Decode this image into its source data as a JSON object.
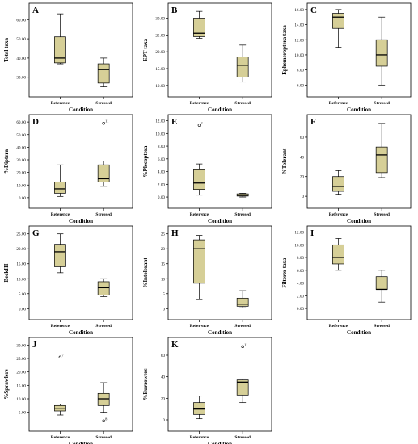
{
  "figure": {
    "categories": [
      "Reference",
      "Stressed"
    ],
    "xlabel": "Condition",
    "box_fill": "#d6cf97",
    "box_stroke": "#000000",
    "panel_border": "#000000"
  },
  "chart_data": [
    {
      "type": "box",
      "panel": "A",
      "ylabel": "Total taxa",
      "yticks": [
        "30.00",
        "40.00",
        "50.00",
        "60.00"
      ],
      "ylim": [
        24,
        66
      ],
      "boxes": [
        {
          "min": 37,
          "q1": 37.5,
          "median": 40,
          "q3": 51,
          "max": 63
        },
        {
          "min": 25,
          "q1": 27,
          "median": 34,
          "q3": 37,
          "max": 40
        }
      ],
      "outliers": []
    },
    {
      "type": "box",
      "panel": "B",
      "ylabel": "EPT taxa",
      "yticks": [
        "10.00",
        "15.00",
        "20.00",
        "25.00",
        "30.00"
      ],
      "ylim": [
        9,
        33
      ],
      "boxes": [
        {
          "min": 24,
          "q1": 24.5,
          "median": 25.5,
          "q3": 30,
          "max": 32
        },
        {
          "min": 11,
          "q1": 12.5,
          "median": 16,
          "q3": 18.5,
          "max": 22
        }
      ],
      "outliers": []
    },
    {
      "type": "box",
      "panel": "C",
      "ylabel": "Ephemeroptera taxa",
      "yticks": [
        "6.00",
        "8.00",
        "10.00",
        "12.00",
        "14.00",
        "16.00"
      ],
      "ylim": [
        5.5,
        16.2
      ],
      "boxes": [
        {
          "min": 11,
          "q1": 13.5,
          "median": 15,
          "q3": 15.5,
          "max": 16
        },
        {
          "min": 6,
          "q1": 8.5,
          "median": 10,
          "q3": 12,
          "max": 15
        }
      ],
      "outliers": []
    },
    {
      "type": "box",
      "panel": "D",
      "ylabel": "%Diptera",
      "yticks": [
        "0.00",
        "10.00",
        "20.00",
        "30.00",
        "40.00",
        "50.00",
        "60.00"
      ],
      "ylim": [
        -2,
        62
      ],
      "boxes": [
        {
          "min": 1,
          "q1": 3.5,
          "median": 7,
          "q3": 12.5,
          "max": 26
        },
        {
          "min": 9,
          "q1": 12.5,
          "median": 15,
          "q3": 26,
          "max": 29
        }
      ],
      "outliers": [
        {
          "group": 1,
          "value": 59,
          "label": "11"
        }
      ]
    },
    {
      "type": "box",
      "panel": "E",
      "ylabel": "%Plecoptera",
      "yticks": [
        "0.00",
        "2.00",
        "4.00",
        "6.00",
        "8.00",
        "10.00",
        "12.00"
      ],
      "ylim": [
        -0.5,
        12.2
      ],
      "boxes": [
        {
          "min": 0.3,
          "q1": 1.2,
          "median": 2.2,
          "q3": 4.4,
          "max": 5.2
        },
        {
          "min": 0,
          "q1": 0.15,
          "median": 0.3,
          "q3": 0.5,
          "max": 0.6
        }
      ],
      "outliers": [
        {
          "group": 0,
          "value": 11.3,
          "label": "2"
        }
      ]
    },
    {
      "type": "box",
      "panel": "F",
      "ylabel": "%Tolerant",
      "yticks": [
        "0",
        "20",
        "40",
        "60"
      ],
      "ylim": [
        -4,
        78
      ],
      "boxes": [
        {
          "min": 2,
          "q1": 5,
          "median": 10,
          "q3": 20,
          "max": 26
        },
        {
          "min": 19,
          "q1": 24,
          "median": 42,
          "q3": 50,
          "max": 74
        }
      ],
      "outliers": []
    },
    {
      "type": "box",
      "panel": "G",
      "ylabel": "BeckIII",
      "yticks": [
        "0.00",
        "5.00",
        "10.00",
        "15.00",
        "20.00",
        "25.00"
      ],
      "ylim": [
        -1,
        26
      ],
      "boxes": [
        {
          "min": 12,
          "q1": 14,
          "median": 19,
          "q3": 21.5,
          "max": 25
        },
        {
          "min": 4,
          "q1": 4.5,
          "median": 7,
          "q3": 9,
          "max": 10
        }
      ],
      "outliers": []
    },
    {
      "type": "box",
      "panel": "H",
      "ylabel": "%Intolerant",
      "yticks": [
        "0",
        "5",
        "10",
        "15",
        "20",
        "25"
      ],
      "ylim": [
        -1,
        26
      ],
      "boxes": [
        {
          "min": 3,
          "q1": 8.5,
          "median": 20,
          "q3": 23,
          "max": 24.5
        },
        {
          "min": 0.3,
          "q1": 0.8,
          "median": 1.5,
          "q3": 3.5,
          "max": 6
        }
      ],
      "outliers": []
    },
    {
      "type": "box",
      "panel": "I",
      "ylabel": "Filterer taxa",
      "yticks": [
        "0.00",
        "2.00",
        "4.00",
        "6.00",
        "8.00",
        "10.00",
        "12.00"
      ],
      "ylim": [
        -0.5,
        12.2
      ],
      "boxes": [
        {
          "min": 6,
          "q1": 7,
          "median": 8,
          "q3": 10,
          "max": 11
        },
        {
          "min": 1,
          "q1": 3,
          "median": 3,
          "q3": 5,
          "max": 6
        }
      ],
      "outliers": []
    },
    {
      "type": "box",
      "panel": "J",
      "ylabel": "%Sprawlers",
      "yticks": [
        "5.00",
        "10.00",
        "15.00",
        "20.00",
        "25.00",
        "30.00"
      ],
      "ylim": [
        1,
        31
      ],
      "boxes": [
        {
          "min": 4,
          "q1": 5.5,
          "median": 6.5,
          "q3": 7.5,
          "max": 8
        },
        {
          "min": 5,
          "q1": 7.5,
          "median": 10,
          "q3": 12,
          "max": 16
        }
      ],
      "outliers": [
        {
          "group": 0,
          "value": 25.5,
          "label": "7"
        },
        {
          "group": 1,
          "value": 1.8,
          "label": "8"
        }
      ]
    },
    {
      "type": "box",
      "panel": "K",
      "ylabel": "%Burrowers",
      "yticks": [
        "0",
        "20",
        "40",
        "60"
      ],
      "ylim": [
        -3,
        72
      ],
      "boxes": [
        {
          "min": 1,
          "q1": 5,
          "median": 10,
          "q3": 16,
          "max": 22
        },
        {
          "min": 16,
          "q1": 23,
          "median": 35,
          "q3": 37,
          "max": 38
        }
      ],
      "outliers": [
        {
          "group": 1,
          "value": 68,
          "label": "11"
        }
      ]
    }
  ]
}
